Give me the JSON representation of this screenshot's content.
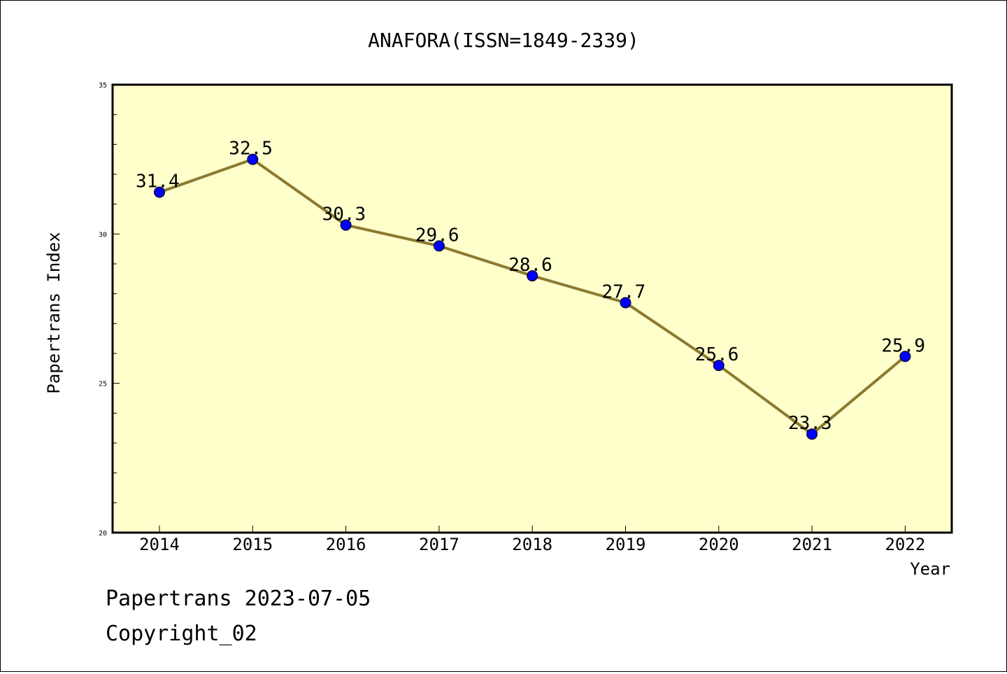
{
  "chart_data": {
    "type": "line",
    "title": "ANAFORA(ISSN=1849-2339)",
    "xlabel": "Year",
    "ylabel": "Papertrans Index",
    "categories": [
      "2014",
      "2015",
      "2016",
      "2017",
      "2018",
      "2019",
      "2020",
      "2021",
      "2022"
    ],
    "series": [
      {
        "values": [
          31.4,
          32.5,
          30.3,
          29.6,
          28.6,
          27.7,
          25.6,
          23.3,
          25.9
        ],
        "value_labels": [
          "31.4",
          "32.5",
          "30.3",
          "29.6",
          "28.6",
          "27.7",
          "25.6",
          "23.3",
          "25.9"
        ]
      }
    ],
    "ylim": [
      20,
      35
    ],
    "y_major_ticks": [
      20,
      25,
      30,
      35
    ],
    "y_minor_step": 1,
    "y_tick_labels": [
      "20",
      "25",
      "30",
      "35"
    ],
    "grid": false,
    "legend": "none"
  },
  "colors": {
    "plot_background": "#ffffcc",
    "line": "#8b7a30",
    "marker": "#0000ff",
    "axis": "#000000"
  },
  "footer": {
    "line1": "Papertrans 2023-07-05",
    "line2": "Copyright_02"
  }
}
